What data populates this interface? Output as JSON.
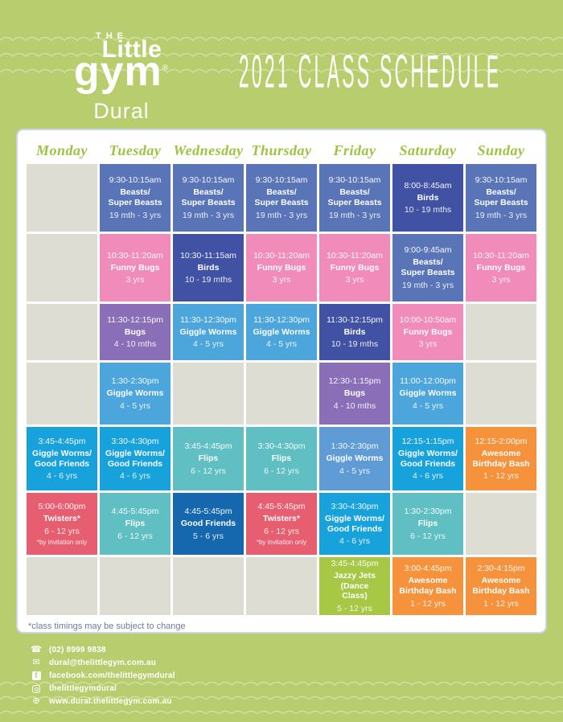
{
  "header": {
    "logo": {
      "the": "THE",
      "little": "Little",
      "gym": "gym",
      "reg": "®",
      "location": "Dural"
    },
    "title": "2021 CLASS SCHEDULE"
  },
  "palette": {
    "blue": "#5a74b8",
    "darkblue": "#4152a4",
    "pink": "#f18cba",
    "purple": "#8a6fb8",
    "lightblue": "#4da6db",
    "medblue": "#5f9cd6",
    "cyan": "#17a2dc",
    "teal": "#5fbfc2",
    "red": "#e85e71",
    "navy": "#1568ad",
    "orange": "#f5923b",
    "green": "#a6c845",
    "empty_cell": "#deddd3",
    "background": "#b8cd6d",
    "day_header_text": "#9cc43c"
  },
  "schedule": {
    "days": [
      "Monday",
      "Tuesday",
      "Wednesday",
      "Thursday",
      "Friday",
      "Saturday",
      "Sunday"
    ],
    "rows": [
      [
        null,
        {
          "time": "9:30-10:15am",
          "name": "Beasts/\nSuper Beasts",
          "age": "19 mth - 3 yrs",
          "color": "blue"
        },
        {
          "time": "9:30-10:15am",
          "name": "Beasts/\nSuper Beasts",
          "age": "19 mth - 3 yrs",
          "color": "blue"
        },
        {
          "time": "9:30-10:15am",
          "name": "Beasts/\nSuper Beasts",
          "age": "19 mth - 3 yrs",
          "color": "blue"
        },
        {
          "time": "9:30-10:15am",
          "name": "Beasts/\nSuper Beasts",
          "age": "19 mth - 3 yrs",
          "color": "blue"
        },
        {
          "time": "8:00-8:45am",
          "name": "Birds",
          "age": "10 - 19 mths",
          "color": "darkblue"
        },
        {
          "time": "9:30-10:15am",
          "name": "Beasts/\nSuper Beasts",
          "age": "19 mth - 3 yrs",
          "color": "blue"
        }
      ],
      [
        null,
        {
          "time": "10:30-11:20am",
          "name": "Funny Bugs",
          "age": "3 yrs",
          "color": "pink"
        },
        {
          "time": "10:30-11:15am",
          "name": "Birds",
          "age": "10 - 19 mths",
          "color": "darkblue"
        },
        {
          "time": "10:30-11:20am",
          "name": "Funny Bugs",
          "age": "3 yrs",
          "color": "pink"
        },
        {
          "time": "10:30-11:20am",
          "name": "Funny Bugs",
          "age": "3 yrs",
          "color": "pink"
        },
        {
          "time": "9:00-9:45am",
          "name": "Beasts/\nSuper Beasts",
          "age": "19 mth - 3 yrs",
          "color": "blue"
        },
        {
          "time": "10:30-11:20am",
          "name": "Funny Bugs",
          "age": "3 yrs",
          "color": "pink"
        }
      ],
      [
        null,
        {
          "time": "11:30-12:15pm",
          "name": "Bugs",
          "age": "4 - 10 mths",
          "color": "purple"
        },
        {
          "time": "11:30-12:30pm",
          "name": "Giggle Worms",
          "age": "4 - 5 yrs",
          "color": "lightblue"
        },
        {
          "time": "11:30-12:30pm",
          "name": "Giggle Worms",
          "age": "4 - 5 yrs",
          "color": "lightblue"
        },
        {
          "time": "11:30-12:15pm",
          "name": "Birds",
          "age": "10 - 19 mths",
          "color": "darkblue"
        },
        {
          "time": "10:00-10:50am",
          "name": "Funny Bugs",
          "age": "3 yrs",
          "color": "pink"
        },
        null
      ],
      [
        null,
        {
          "time": "1:30-2:30pm",
          "name": "Giggle Worms",
          "age": "4 - 5 yrs",
          "color": "lightblue"
        },
        null,
        null,
        {
          "time": "12:30-1:15pm",
          "name": "Bugs",
          "age": "4 - 10 mths",
          "color": "purple"
        },
        {
          "time": "11:00-12:00pm",
          "name": "Giggle Worms",
          "age": "4 - 5 yrs",
          "color": "lightblue"
        },
        null
      ],
      [
        {
          "time": "3:45-4:45pm",
          "name": "Giggle Worms/\nGood Friends",
          "age": "4 - 6 yrs",
          "color": "cyan"
        },
        {
          "time": "3:30-4:30pm",
          "name": "Giggle Worms/\nGood Friends",
          "age": "4 - 6 yrs",
          "color": "cyan"
        },
        {
          "time": "3:45-4:45pm",
          "name": "Flips",
          "age": "6 - 12 yrs",
          "color": "teal"
        },
        {
          "time": "3:30-4:30pm",
          "name": "Flips",
          "age": "6 - 12 yrs",
          "color": "teal"
        },
        {
          "time": "1:30-2:30pm",
          "name": "Giggle Worms",
          "age": "4 - 5 yrs",
          "color": "medblue"
        },
        {
          "time": "12:15-1:15pm",
          "name": "Giggle Worms/\nGood Friends",
          "age": "4 - 6 yrs",
          "color": "cyan"
        },
        {
          "time": "12:15-2:00pm",
          "name": "Awesome\nBirthday Bash",
          "age": "1 - 12 yrs",
          "color": "orange"
        }
      ],
      [
        {
          "time": "5:00-6:00pm",
          "name": "Twisters*",
          "age": "6 - 12 yrs",
          "color": "red",
          "note": "*by invitation only"
        },
        {
          "time": "4:45-5:45pm",
          "name": "Flips",
          "age": "6 - 12 yrs",
          "color": "teal"
        },
        {
          "time": "4:45-5:45pm",
          "name": "Good Friends",
          "age": "5 - 6 yrs",
          "color": "navy"
        },
        {
          "time": "4:45-5:45pm",
          "name": "Twisters*",
          "age": "6 - 12 yrs",
          "color": "red",
          "note": "*by invitation only"
        },
        {
          "time": "3:30-4:30pm",
          "name": "Giggle Worms/\nGood Friends",
          "age": "4 - 6 yrs",
          "color": "cyan"
        },
        {
          "time": "1:30-2:30pm",
          "name": "Flips",
          "age": "6 - 12 yrs",
          "color": "teal"
        },
        null
      ],
      [
        null,
        null,
        null,
        null,
        {
          "time": "3:45-4:45pm",
          "name": "Jazzy Jets\n(Dance\nClass)",
          "age": "5 - 12 yrs",
          "color": "green"
        },
        {
          "time": "3:00-4:45pm",
          "name": "Awesome\nBirthday Bash",
          "age": "1 - 12 yrs",
          "color": "orange"
        },
        {
          "time": "2:30-4:15pm",
          "name": "Awesome\nBirthday Bash",
          "age": "1 - 12 yrs",
          "color": "orange"
        }
      ]
    ]
  },
  "footnote": "*class timings may be subject to change",
  "contact": {
    "items": [
      {
        "icon": "phone-icon",
        "text": "(02) 8999 9838"
      },
      {
        "icon": "email-icon",
        "text": "dural@thelittlegym.com.au"
      },
      {
        "icon": "facebook-icon",
        "text": "facebook.com/thelittlegymdural"
      },
      {
        "icon": "instagram-icon",
        "text": "thelittlegymdural"
      },
      {
        "icon": "globe-icon",
        "text": "www.dural.thelittlegym.com.au"
      }
    ]
  }
}
